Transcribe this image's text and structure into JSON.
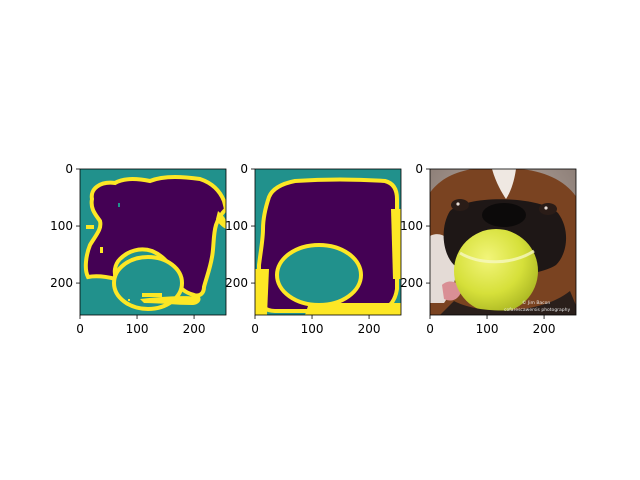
{
  "chart_data": [
    {
      "type": "heatmap",
      "title": "",
      "xlabel": "",
      "ylabel": "",
      "image_size": [
        256,
        256
      ],
      "x_ticks": [
        0,
        100,
        200
      ],
      "y_ticks": [
        0,
        100,
        200
      ],
      "xlim": [
        0,
        256
      ],
      "ylim": [
        256,
        0
      ],
      "colormap": "viridis",
      "classes": [
        {
          "value": 0,
          "color": "#440154"
        },
        {
          "value": 1,
          "color": "#21918c"
        },
        {
          "value": 2,
          "color": "#fde725"
        }
      ],
      "content": "predicted segmentation mask"
    },
    {
      "type": "heatmap",
      "title": "",
      "xlabel": "",
      "ylabel": "",
      "image_size": [
        256,
        256
      ],
      "x_ticks": [
        0,
        100,
        200
      ],
      "y_ticks": [
        0,
        100,
        200
      ],
      "xlim": [
        0,
        256
      ],
      "ylim": [
        256,
        0
      ],
      "colormap": "viridis",
      "classes": [
        {
          "value": 0,
          "color": "#440154"
        },
        {
          "value": 1,
          "color": "#21918c"
        },
        {
          "value": 2,
          "color": "#fde725"
        }
      ],
      "content": "ground-truth segmentation mask"
    },
    {
      "type": "image",
      "title": "",
      "xlabel": "",
      "ylabel": "",
      "image_size": [
        256,
        256
      ],
      "x_ticks": [
        0,
        100,
        200
      ],
      "y_ticks": [
        0,
        100,
        200
      ],
      "xlim": [
        0,
        256
      ],
      "ylim": [
        256,
        0
      ],
      "caption_lines": [
        "© Jim Bacon",
        "cofarescawersis photography"
      ]
    }
  ]
}
